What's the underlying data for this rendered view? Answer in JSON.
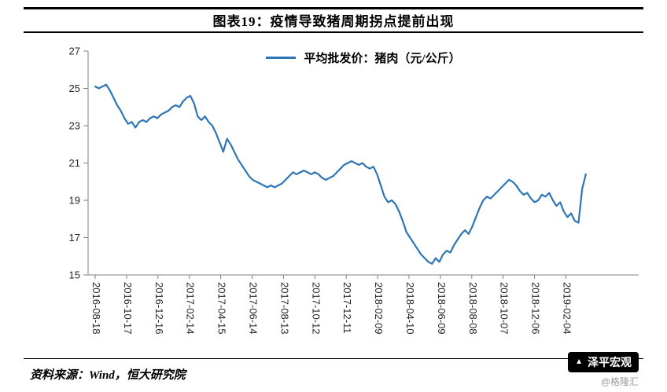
{
  "header": {
    "title": "图表19：疫情导致猪周期拐点提前出现"
  },
  "chart_data": {
    "type": "line",
    "title": "图表19：疫情导致猪周期拐点提前出现",
    "legend": "平均批发价：猪肉（元/公斤）",
    "line_color": "#2e75b6",
    "ylim": [
      15,
      27
    ],
    "y_ticks": [
      15,
      17,
      19,
      21,
      23,
      25,
      27
    ],
    "x_tick_labels": [
      "2016-08-18",
      "2016-10-17",
      "2016-12-16",
      "2017-02-14",
      "2017-04-15",
      "2017-06-14",
      "2017-08-13",
      "2017-10-12",
      "2017-12-11",
      "2018-02-09",
      "2018-04-10",
      "2018-06-09",
      "2018-08-08",
      "2018-10-07",
      "2018-12-06",
      "2019-02-04"
    ],
    "x_tick_interval_days": 60,
    "start_date": "2016-08-18",
    "point_interval_days": 7,
    "values": [
      25.1,
      25.0,
      25.1,
      25.2,
      24.9,
      24.5,
      24.1,
      23.8,
      23.4,
      23.1,
      23.2,
      22.9,
      23.2,
      23.3,
      23.2,
      23.4,
      23.5,
      23.4,
      23.6,
      23.7,
      23.8,
      24.0,
      24.1,
      24.0,
      24.3,
      24.5,
      24.6,
      24.2,
      23.5,
      23.3,
      23.5,
      23.2,
      23.0,
      22.6,
      22.1,
      21.6,
      22.3,
      22.0,
      21.6,
      21.2,
      20.9,
      20.6,
      20.3,
      20.1,
      20.0,
      19.9,
      19.8,
      19.7,
      19.8,
      19.7,
      19.8,
      19.9,
      20.1,
      20.3,
      20.5,
      20.4,
      20.5,
      20.6,
      20.5,
      20.4,
      20.5,
      20.4,
      20.2,
      20.1,
      20.2,
      20.3,
      20.5,
      20.7,
      20.9,
      21.0,
      21.1,
      21.0,
      20.9,
      21.0,
      20.8,
      20.7,
      20.8,
      20.4,
      19.8,
      19.2,
      18.9,
      19.0,
      18.8,
      18.4,
      17.9,
      17.3,
      17.0,
      16.7,
      16.4,
      16.1,
      15.9,
      15.7,
      15.6,
      15.9,
      15.7,
      16.1,
      16.3,
      16.2,
      16.6,
      16.9,
      17.2,
      17.4,
      17.2,
      17.6,
      18.1,
      18.6,
      19.0,
      19.2,
      19.1,
      19.3,
      19.5,
      19.7,
      19.9,
      20.1,
      20.0,
      19.8,
      19.5,
      19.3,
      19.4,
      19.1,
      18.9,
      19.0,
      19.3,
      19.2,
      19.4,
      19.0,
      18.7,
      18.9,
      18.4,
      18.1,
      18.3,
      17.9,
      17.8,
      19.6,
      20.4
    ]
  },
  "footer": {
    "source": "资料来源：Wind，恒大研究院",
    "badge_icon": "▲",
    "badge_label": "泽平宏观",
    "watermark": "@格隆汇"
  }
}
